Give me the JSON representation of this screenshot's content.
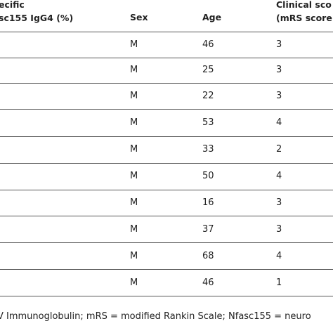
{
  "table": {
    "headers": {
      "col_igg4": [
        "ecific",
        "sc155 IgG4 (%)"
      ],
      "col_sex": "Sex",
      "col_age": "Age",
      "col_score": [
        "Clinical sco",
        "(mRS score"
      ]
    },
    "rows": [
      {
        "sex": "M",
        "age": "46",
        "mrs": "3"
      },
      {
        "sex": "M",
        "age": "25",
        "mrs": "3"
      },
      {
        "sex": "M",
        "age": "22",
        "mrs": "3"
      },
      {
        "sex": "M",
        "age": "53",
        "mrs": "4"
      },
      {
        "sex": "M",
        "age": "33",
        "mrs": "2"
      },
      {
        "sex": "M",
        "age": "50",
        "mrs": "4"
      },
      {
        "sex": "M",
        "age": "16",
        "mrs": "3"
      },
      {
        "sex": "M",
        "age": "37",
        "mrs": "3"
      },
      {
        "sex": "M",
        "age": "68",
        "mrs": "4"
      },
      {
        "sex": "M",
        "age": "46",
        "mrs": "1"
      }
    ],
    "footnote": "V Immunoglobulin; mRS = modified Rankin Scale; Nfasc155 = neuro"
  },
  "colors": {
    "text": "#222222",
    "rule": "#555555",
    "background": "#ffffff"
  }
}
